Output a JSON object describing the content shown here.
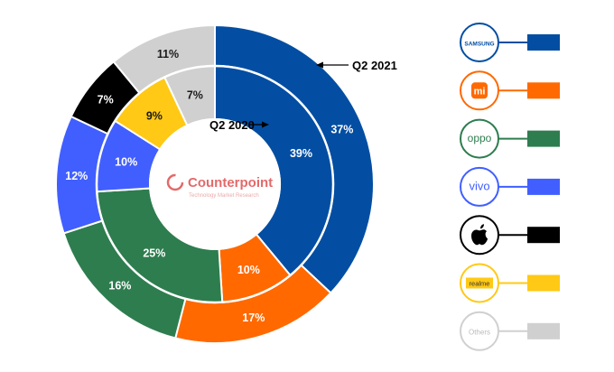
{
  "chart_data": {
    "type": "donut",
    "rings": [
      {
        "name": "Q2 2021",
        "values": [
          37,
          17,
          16,
          12,
          7,
          11
        ],
        "labels": [
          "37%",
          "17%",
          "16%",
          "12%",
          "7%",
          "11%"
        ],
        "brands": [
          "Samsung",
          "Xiaomi",
          "OPPO",
          "vivo",
          "Apple",
          "Others"
        ]
      },
      {
        "name": "Q2 2020",
        "values": [
          39,
          10,
          25,
          10,
          9,
          7
        ],
        "labels": [
          "39%",
          "10%",
          "25%",
          "10%",
          "9%",
          "7%"
        ],
        "brands": [
          "Samsung",
          "Xiaomi",
          "OPPO",
          "vivo",
          "realme",
          "Others"
        ]
      }
    ],
    "colors": {
      "Samsung": "#034EA2",
      "Xiaomi": "#FF6900",
      "OPPO": "#2E7D4F",
      "vivo": "#415FFF",
      "Apple": "#000000",
      "realme": "#FFC915",
      "Others": "#D0D0D0"
    },
    "legend": [
      {
        "brand": "Samsung",
        "logo_text": "SAMSUNG",
        "ring_color": "#034EA2"
      },
      {
        "brand": "Xiaomi",
        "logo_text": "mi",
        "ring_color": "#FF6900"
      },
      {
        "brand": "OPPO",
        "logo_text": "oppo",
        "ring_color": "#2E7D4F"
      },
      {
        "brand": "vivo",
        "logo_text": "vivo",
        "ring_color": "#415FFF"
      },
      {
        "brand": "Apple",
        "logo_text": "",
        "ring_color": "#000000"
      },
      {
        "brand": "realme",
        "logo_text": "realme",
        "ring_color": "#FFC915"
      },
      {
        "brand": "Others",
        "logo_text": "Others",
        "ring_color": "#D0D0D0"
      }
    ],
    "legend_position": "right"
  },
  "watermark": {
    "name": "Counterpoint",
    "tagline": "Technology Market Research",
    "color": "#E05A5A"
  }
}
